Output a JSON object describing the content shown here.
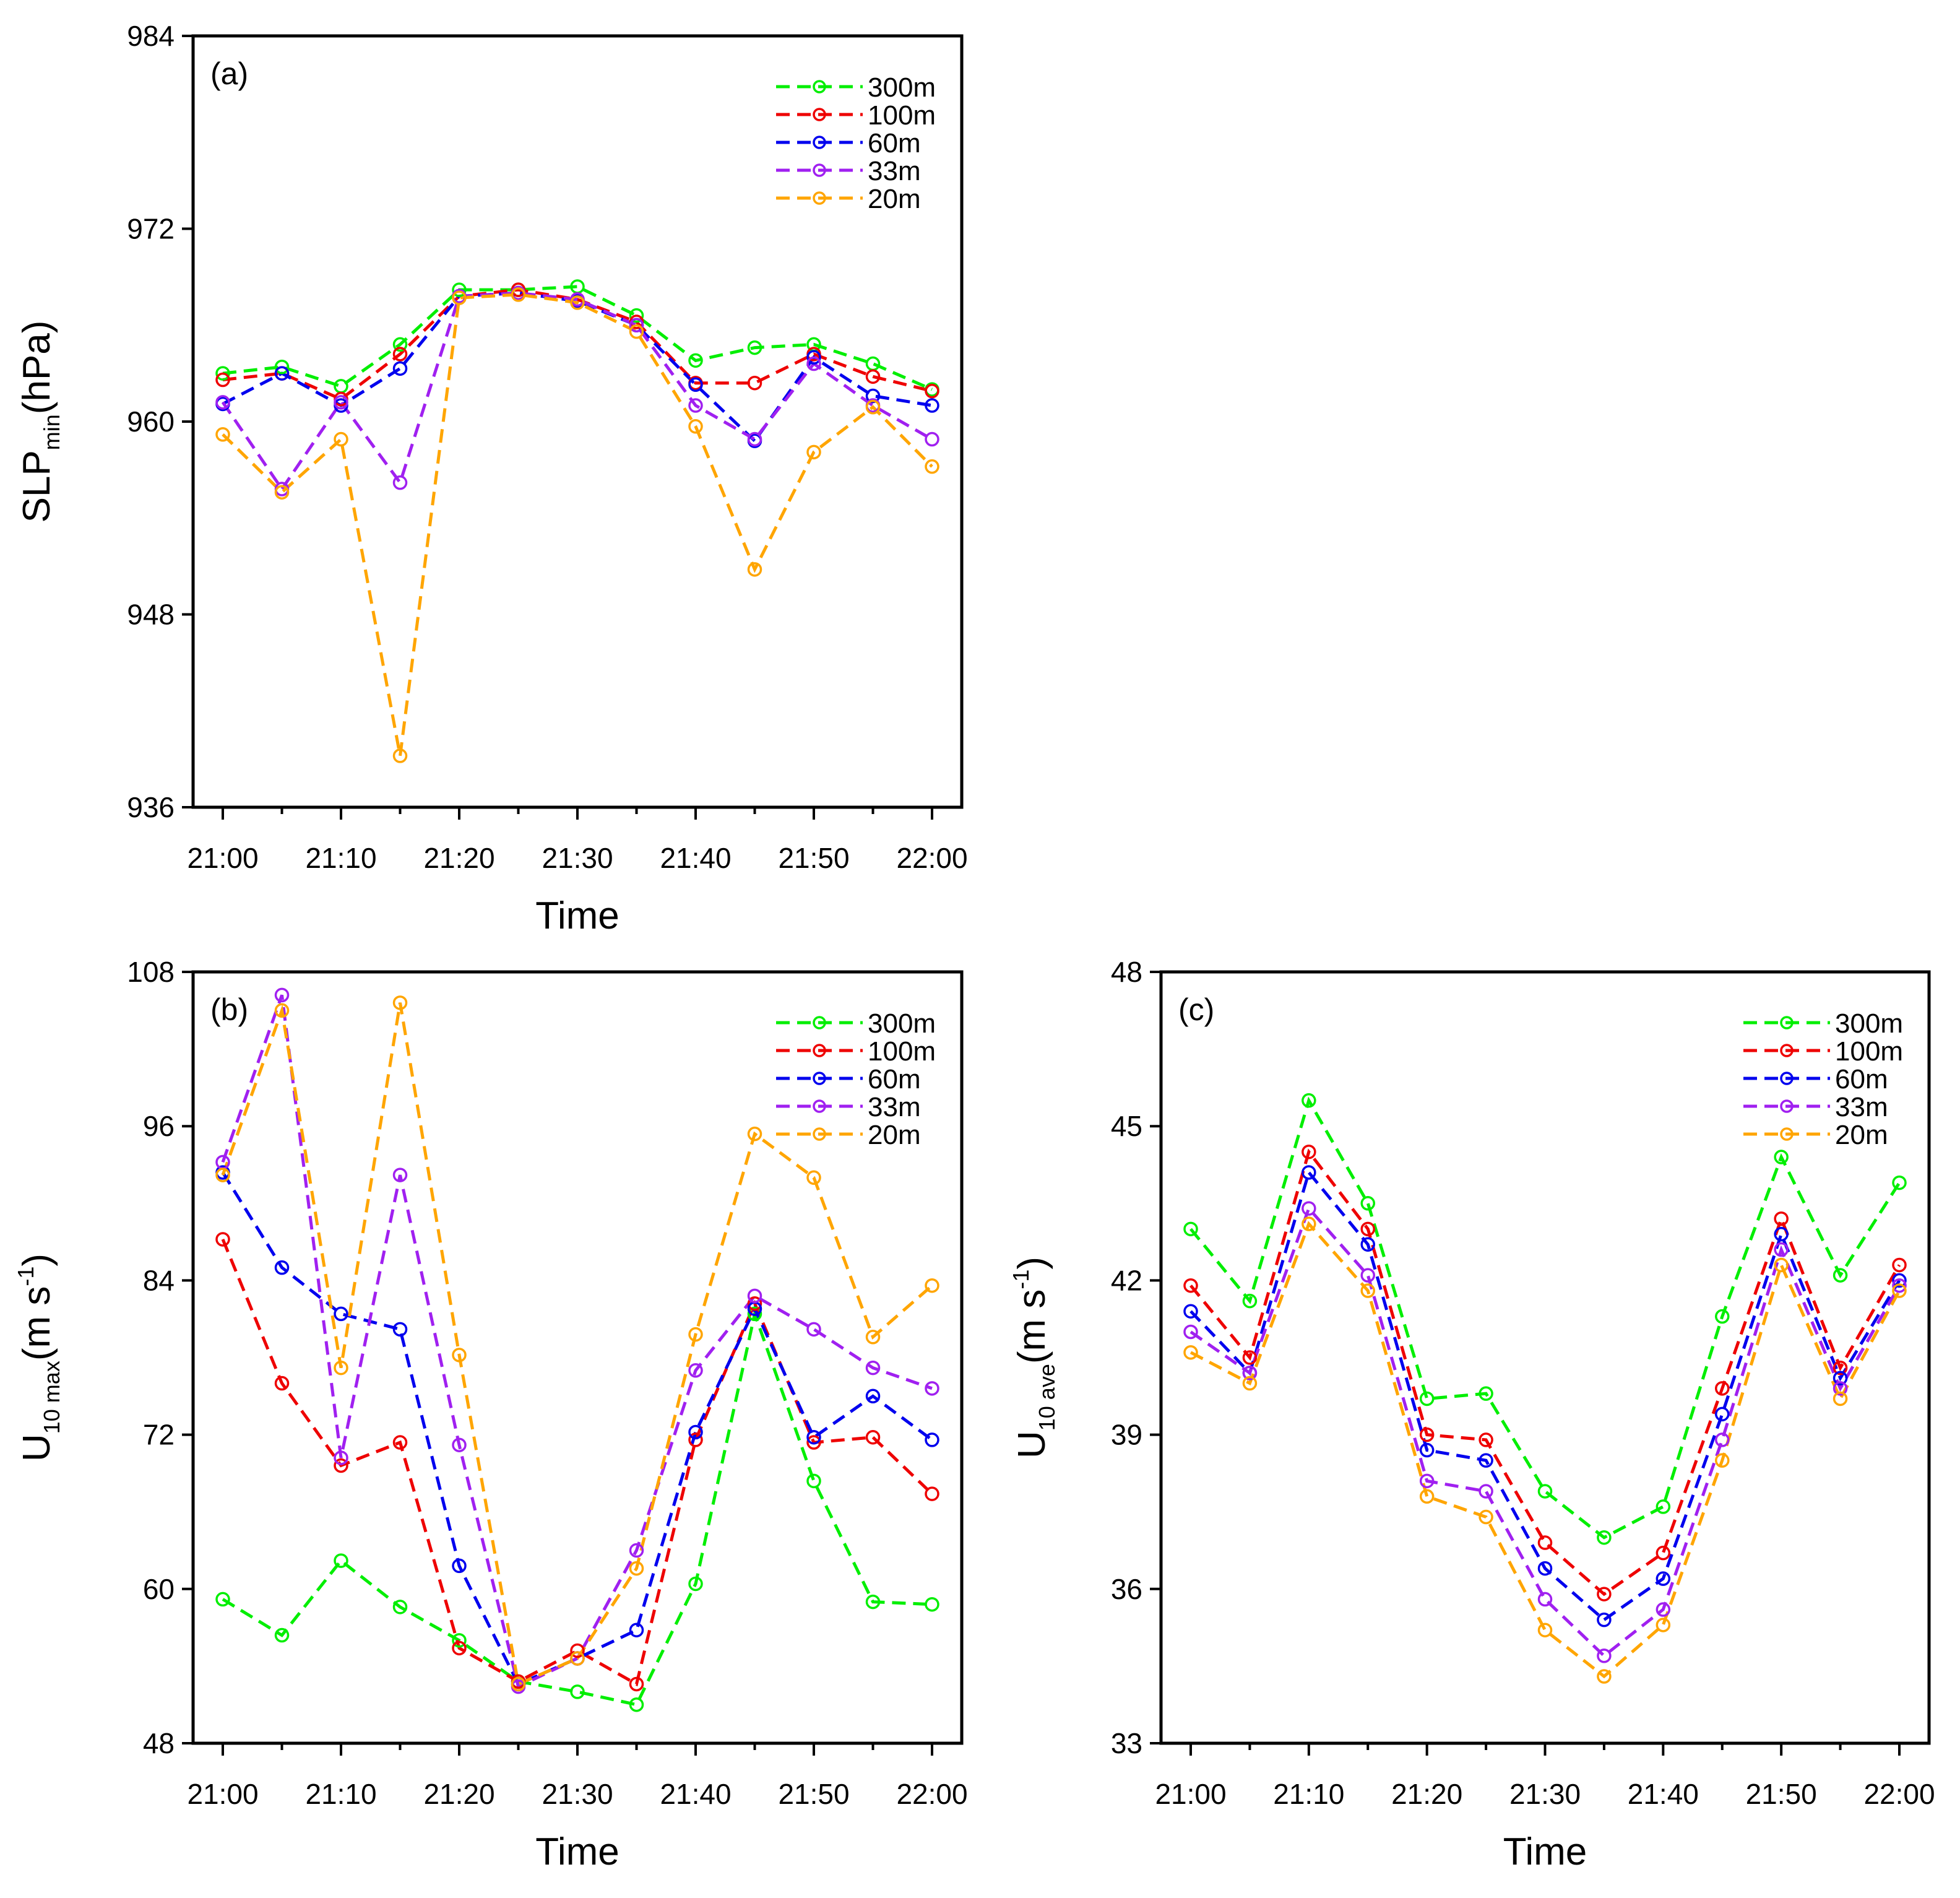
{
  "chart_data": [
    {
      "type": "line",
      "panel_label": "(a)",
      "xlabel": "Time",
      "ylabel": {
        "main": "SLP",
        "sub": "min",
        "rest": "(hPa)"
      },
      "ylim": [
        936,
        984
      ],
      "yticks": [
        "936",
        "948",
        "960",
        "972",
        "984"
      ],
      "categories": [
        "21:00",
        "21:05",
        "21:10",
        "21:15",
        "21:20",
        "21:25",
        "21:30",
        "21:35",
        "21:40",
        "21:45",
        "21:50",
        "21:55",
        "22:00"
      ],
      "xticklabels": [
        "21:00",
        "21:10",
        "21:20",
        "21:30",
        "21:40",
        "21:50",
        "22:00"
      ],
      "legend_position": "top-right",
      "series": [
        {
          "name": "300m",
          "color": "#00ee00",
          "values": [
            963.0,
            963.4,
            962.2,
            964.8,
            968.2,
            968.2,
            968.4,
            966.6,
            963.8,
            964.6,
            964.8,
            963.6,
            962.0
          ]
        },
        {
          "name": "100m",
          "color": "#ee0000",
          "values": [
            962.6,
            963.0,
            961.4,
            964.2,
            967.8,
            968.2,
            967.6,
            966.2,
            962.4,
            962.4,
            964.2,
            962.8,
            961.9
          ]
        },
        {
          "name": "60m",
          "color": "#0000ee",
          "values": [
            961.1,
            963.0,
            961.0,
            963.3,
            967.8,
            968.0,
            967.5,
            966.0,
            962.3,
            958.8,
            964.0,
            961.6,
            961.0
          ]
        },
        {
          "name": "33m",
          "color": "#a020f0",
          "values": [
            961.2,
            955.8,
            961.2,
            956.2,
            967.8,
            968.0,
            967.6,
            966.0,
            961.0,
            958.9,
            963.6,
            961.0,
            958.9
          ]
        },
        {
          "name": "20m",
          "color": "#ffa500",
          "values": [
            959.2,
            955.6,
            958.9,
            939.2,
            967.7,
            967.9,
            967.4,
            965.6,
            959.7,
            950.8,
            958.1,
            960.9,
            957.2
          ]
        }
      ]
    },
    {
      "type": "line",
      "panel_label": "(b)",
      "xlabel": "Time",
      "ylabel": {
        "main": "U",
        "sub": "10 max",
        "rest": "(m s",
        "sup": "-1",
        "close": ")"
      },
      "ylim": [
        48,
        108
      ],
      "yticks": [
        "48",
        "60",
        "72",
        "84",
        "96",
        "108"
      ],
      "categories": [
        "21:00",
        "21:05",
        "21:10",
        "21:15",
        "21:20",
        "21:25",
        "21:30",
        "21:35",
        "21:40",
        "21:45",
        "21:50",
        "21:55",
        "22:00"
      ],
      "xticklabels": [
        "21:00",
        "21:10",
        "21:20",
        "21:30",
        "21:40",
        "21:50",
        "22:00"
      ],
      "legend_position": "top-right",
      "series": [
        {
          "name": "300m",
          "color": "#00ee00",
          "values": [
            59.2,
            56.4,
            62.2,
            58.6,
            56.0,
            52.8,
            52.0,
            51.0,
            60.4,
            81.4,
            68.4,
            59.0,
            58.8
          ]
        },
        {
          "name": "100m",
          "color": "#ee0000",
          "values": [
            87.2,
            76.0,
            69.6,
            71.4,
            55.4,
            52.8,
            55.2,
            52.6,
            71.6,
            82.2,
            71.4,
            71.8,
            67.4
          ]
        },
        {
          "name": "60m",
          "color": "#0000ee",
          "values": [
            92.4,
            85.0,
            81.4,
            80.2,
            61.8,
            52.6,
            54.6,
            56.8,
            72.2,
            81.8,
            71.8,
            75.0,
            71.6
          ]
        },
        {
          "name": "33m",
          "color": "#a020f0",
          "values": [
            93.2,
            106.2,
            70.2,
            92.2,
            71.2,
            52.4,
            54.6,
            63.0,
            77.0,
            82.8,
            80.2,
            77.2,
            75.6
          ]
        },
        {
          "name": "20m",
          "color": "#ffa500",
          "values": [
            92.2,
            105.0,
            77.2,
            105.6,
            78.2,
            52.6,
            54.6,
            61.6,
            79.8,
            95.4,
            92.0,
            79.6,
            83.6
          ]
        }
      ]
    },
    {
      "type": "line",
      "panel_label": "(c)",
      "xlabel": "Time",
      "ylabel": {
        "main": "U",
        "sub": "10 ave",
        "rest": "(m s",
        "sup": "-1",
        "close": ")"
      },
      "ylim": [
        33,
        48
      ],
      "yticks": [
        "33",
        "36",
        "39",
        "42",
        "45",
        "48"
      ],
      "categories": [
        "21:00",
        "21:05",
        "21:10",
        "21:15",
        "21:20",
        "21:25",
        "21:30",
        "21:35",
        "21:40",
        "21:45",
        "21:50",
        "21:55",
        "22:00"
      ],
      "xticklabels": [
        "21:00",
        "21:10",
        "21:20",
        "21:30",
        "21:40",
        "21:50",
        "22:00"
      ],
      "legend_position": "top-right",
      "series": [
        {
          "name": "300m",
          "color": "#00ee00",
          "values": [
            43.0,
            41.6,
            45.5,
            43.5,
            39.7,
            39.8,
            37.9,
            37.0,
            37.6,
            41.3,
            44.4,
            42.1,
            43.9
          ]
        },
        {
          "name": "100m",
          "color": "#ee0000",
          "values": [
            41.9,
            40.5,
            44.5,
            43.0,
            39.0,
            38.9,
            36.9,
            35.9,
            36.7,
            39.9,
            43.2,
            40.3,
            42.3
          ]
        },
        {
          "name": "60m",
          "color": "#0000ee",
          "values": [
            41.4,
            40.2,
            44.1,
            42.7,
            38.7,
            38.5,
            36.4,
            35.4,
            36.2,
            39.4,
            42.9,
            40.1,
            42.0
          ]
        },
        {
          "name": "33m",
          "color": "#a020f0",
          "values": [
            41.0,
            40.2,
            43.4,
            42.1,
            38.1,
            37.9,
            35.8,
            34.7,
            35.6,
            38.9,
            42.6,
            39.9,
            41.9
          ]
        },
        {
          "name": "20m",
          "color": "#ffa500",
          "values": [
            40.6,
            40.0,
            43.1,
            41.8,
            37.8,
            37.4,
            35.2,
            34.3,
            35.3,
            38.5,
            42.3,
            39.7,
            41.8
          ]
        }
      ]
    }
  ]
}
